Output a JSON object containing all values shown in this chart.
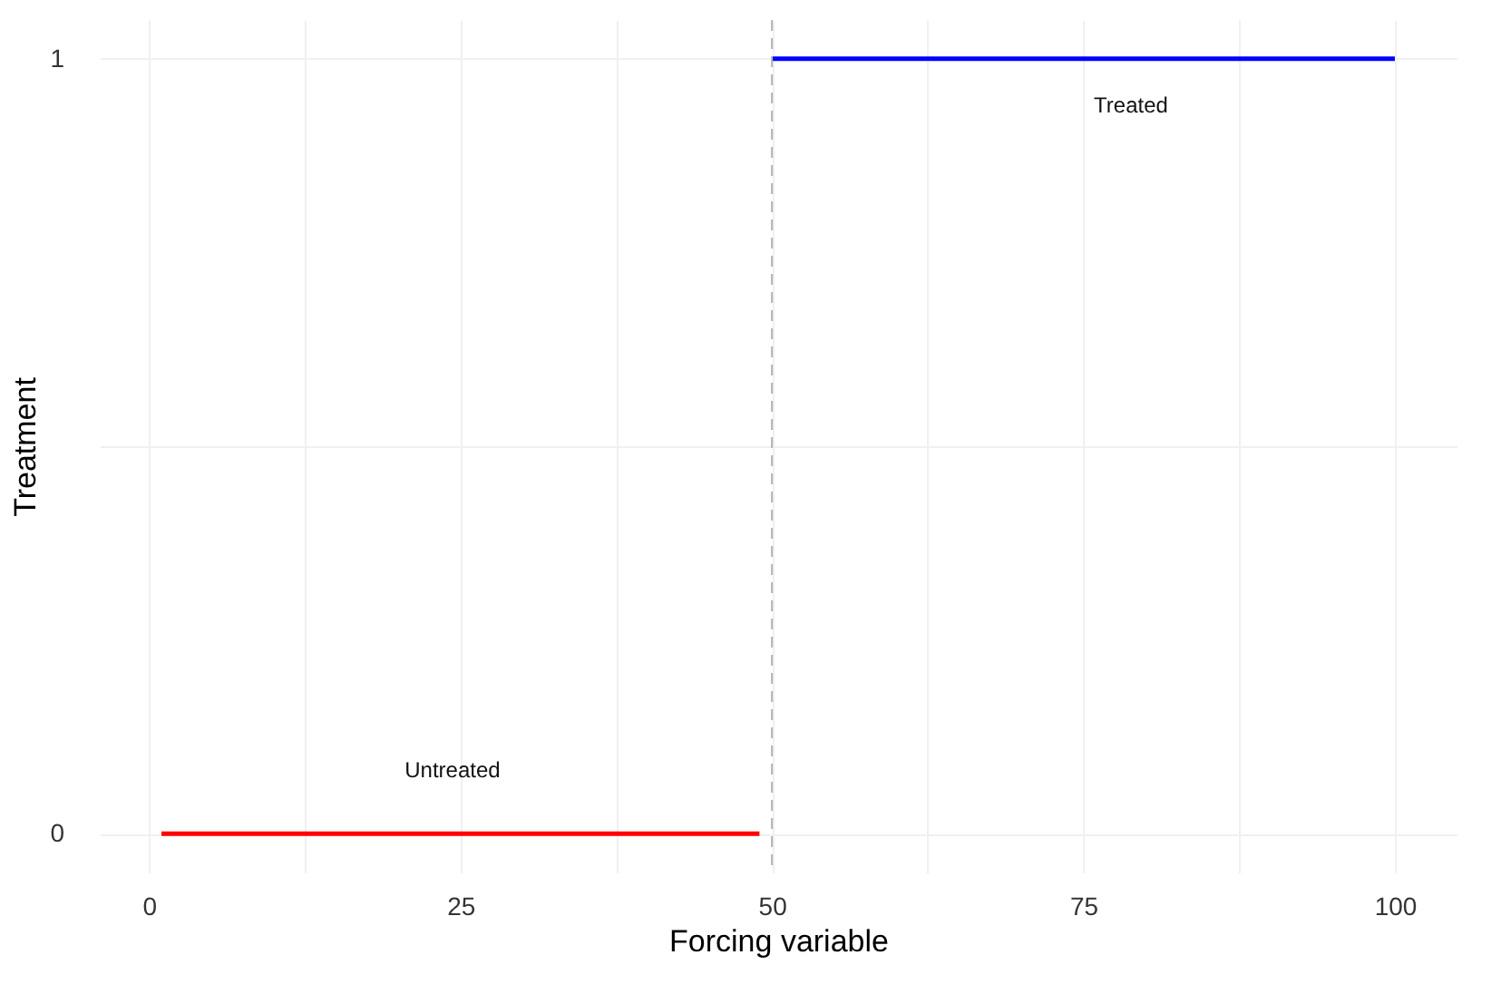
{
  "chart_data": {
    "type": "line",
    "xlabel": "Forcing variable",
    "ylabel": "Treatment",
    "series": [
      {
        "x": [
          1,
          49
        ],
        "values": [
          0,
          0
        ],
        "color": "#ff0000"
      },
      {
        "x": [
          50,
          100
        ],
        "values": [
          1,
          1
        ],
        "color": "#0000ff"
      }
    ],
    "xlim": [
      -3.95,
      104.95
    ],
    "xticks": [
      0,
      {
        "value": 12.5,
        "label": null
      },
      25,
      {
        "value": 37.5,
        "label": null
      },
      50,
      {
        "value": 62.5,
        "label": null
      },
      75,
      {
        "value": 87.5,
        "label": null
      },
      100
    ],
    "ylim": [
      -0.05,
      1.05
    ],
    "yticks": [
      0,
      {
        "value": 0.5,
        "label": null
      },
      1
    ],
    "grid": true,
    "legend": false,
    "line_style": "solid",
    "marker": "none",
    "ref_lines": [
      {
        "axis": "x",
        "value": 50,
        "color": "#b3b3b3",
        "line_style": "dashed"
      }
    ],
    "annotations": [
      "Untreated",
      "Treated"
    ]
  }
}
